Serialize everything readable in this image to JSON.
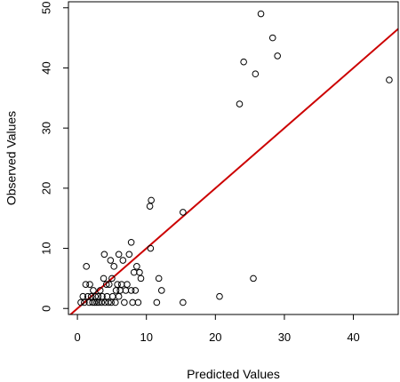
{
  "chart_data": {
    "type": "scatter",
    "title": "",
    "xlabel": "Predicted Values",
    "ylabel": "Observed Values",
    "xlim": [
      -1.3,
      46.5
    ],
    "ylim": [
      -1,
      51
    ],
    "x_ticks": [
      0,
      10,
      20,
      30,
      40
    ],
    "y_ticks": [
      0,
      10,
      20,
      30,
      40,
      50
    ],
    "x_tick_labels": [
      "0",
      "10",
      "20",
      "30",
      "40"
    ],
    "y_tick_labels": [
      "0",
      "10",
      "20",
      "30",
      "40",
      "50"
    ],
    "grid": false,
    "legend": "none",
    "colors": {
      "points": "#000000",
      "fit_line": "#cc0000",
      "frame": "#000000"
    },
    "reference_line": {
      "slope": 1.0,
      "intercept": 0.0
    },
    "points": [
      {
        "x": 0.5,
        "y": 1
      },
      {
        "x": 0.8,
        "y": 2
      },
      {
        "x": 1.0,
        "y": 1
      },
      {
        "x": 1.2,
        "y": 4
      },
      {
        "x": 1.3,
        "y": 7
      },
      {
        "x": 1.5,
        "y": 2
      },
      {
        "x": 1.7,
        "y": 1
      },
      {
        "x": 1.8,
        "y": 4
      },
      {
        "x": 2.0,
        "y": 2
      },
      {
        "x": 2.2,
        "y": 1
      },
      {
        "x": 2.3,
        "y": 3
      },
      {
        "x": 2.5,
        "y": 1
      },
      {
        "x": 2.6,
        "y": 2
      },
      {
        "x": 2.8,
        "y": 1
      },
      {
        "x": 3.0,
        "y": 2
      },
      {
        "x": 3.1,
        "y": 1
      },
      {
        "x": 3.3,
        "y": 3
      },
      {
        "x": 3.5,
        "y": 1
      },
      {
        "x": 3.6,
        "y": 2
      },
      {
        "x": 3.8,
        "y": 5
      },
      {
        "x": 3.9,
        "y": 9
      },
      {
        "x": 4.0,
        "y": 1
      },
      {
        "x": 4.2,
        "y": 4
      },
      {
        "x": 4.3,
        "y": 2
      },
      {
        "x": 4.5,
        "y": 1
      },
      {
        "x": 4.6,
        "y": 4
      },
      {
        "x": 4.8,
        "y": 8
      },
      {
        "x": 4.9,
        "y": 1
      },
      {
        "x": 5.0,
        "y": 5
      },
      {
        "x": 5.1,
        "y": 2
      },
      {
        "x": 5.3,
        "y": 7
      },
      {
        "x": 5.5,
        "y": 1
      },
      {
        "x": 5.6,
        "y": 3
      },
      {
        "x": 5.8,
        "y": 4
      },
      {
        "x": 6.0,
        "y": 2
      },
      {
        "x": 6.0,
        "y": 9
      },
      {
        "x": 6.2,
        "y": 3
      },
      {
        "x": 6.4,
        "y": 4
      },
      {
        "x": 6.6,
        "y": 8
      },
      {
        "x": 6.8,
        "y": 1
      },
      {
        "x": 7.0,
        "y": 3
      },
      {
        "x": 7.2,
        "y": 4
      },
      {
        "x": 7.5,
        "y": 9
      },
      {
        "x": 7.8,
        "y": 11
      },
      {
        "x": 7.8,
        "y": 3
      },
      {
        "x": 8.0,
        "y": 1
      },
      {
        "x": 8.2,
        "y": 6
      },
      {
        "x": 8.4,
        "y": 3
      },
      {
        "x": 8.6,
        "y": 7
      },
      {
        "x": 8.8,
        "y": 1
      },
      {
        "x": 9.0,
        "y": 6
      },
      {
        "x": 9.2,
        "y": 5
      },
      {
        "x": 10.5,
        "y": 17
      },
      {
        "x": 10.7,
        "y": 18
      },
      {
        "x": 10.6,
        "y": 10
      },
      {
        "x": 11.8,
        "y": 5
      },
      {
        "x": 11.5,
        "y": 1
      },
      {
        "x": 12.2,
        "y": 3
      },
      {
        "x": 15.3,
        "y": 16
      },
      {
        "x": 15.3,
        "y": 1
      },
      {
        "x": 20.6,
        "y": 2
      },
      {
        "x": 23.5,
        "y": 34
      },
      {
        "x": 24.1,
        "y": 41
      },
      {
        "x": 25.5,
        "y": 5
      },
      {
        "x": 25.8,
        "y": 39
      },
      {
        "x": 26.6,
        "y": 49
      },
      {
        "x": 28.3,
        "y": 45
      },
      {
        "x": 29.0,
        "y": 42
      },
      {
        "x": 45.2,
        "y": 38
      }
    ]
  }
}
